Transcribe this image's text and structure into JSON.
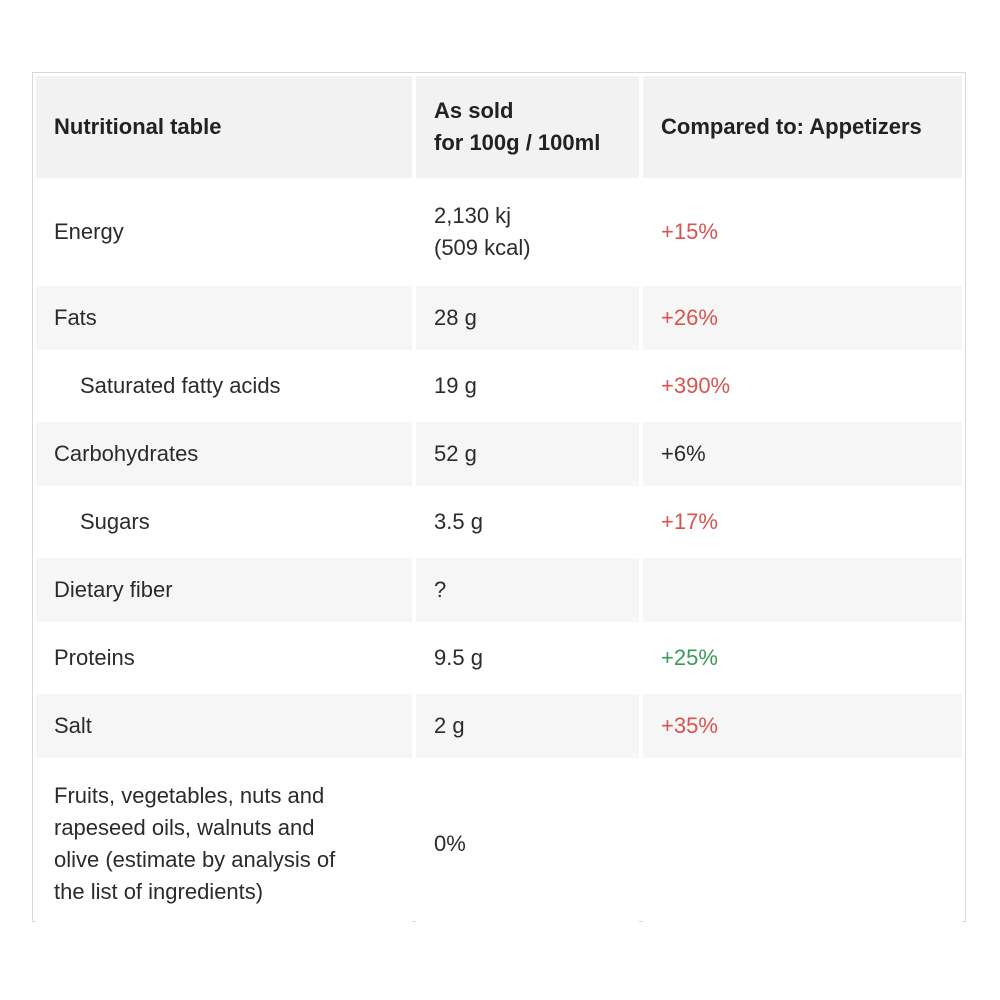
{
  "table": {
    "headers": {
      "col1": "Nutritional table",
      "col2_line1": "As sold",
      "col2_line2": "for 100g / 100ml",
      "col3": "Compared to: Appetizers"
    },
    "rows": [
      {
        "name": "Energy",
        "value_line1": "2,130 kj",
        "value_line2": "(509 kcal)",
        "compare": "+15%",
        "compare_color": "#d9534f"
      },
      {
        "name": "Fats",
        "value": "28 g",
        "compare": "+26%",
        "compare_color": "#d9534f"
      },
      {
        "name": "Saturated fatty acids",
        "value": "19 g",
        "compare": "+390%",
        "compare_color": "#d9534f"
      },
      {
        "name": "Carbohydrates",
        "value": "52 g",
        "compare": "+6%",
        "compare_color": "#2b2b2b"
      },
      {
        "name": "Sugars",
        "value": "3.5 g",
        "compare": "+17%",
        "compare_color": "#d9534f"
      },
      {
        "name": "Dietary fiber",
        "value": "?",
        "compare": ""
      },
      {
        "name": "Proteins",
        "value": "9.5 g",
        "compare": "+25%",
        "compare_color": "#3a9a58"
      },
      {
        "name": "Salt",
        "value": "2 g",
        "compare": "+35%",
        "compare_color": "#d9534f"
      },
      {
        "name_line1": "Fruits, vegetables, nuts and",
        "name_line2": "rapeseed oils, walnuts and",
        "name_line3": "olive (estimate by analysis of",
        "name_line4": "the list of ingredients)",
        "value": "0%",
        "compare": ""
      }
    ]
  }
}
